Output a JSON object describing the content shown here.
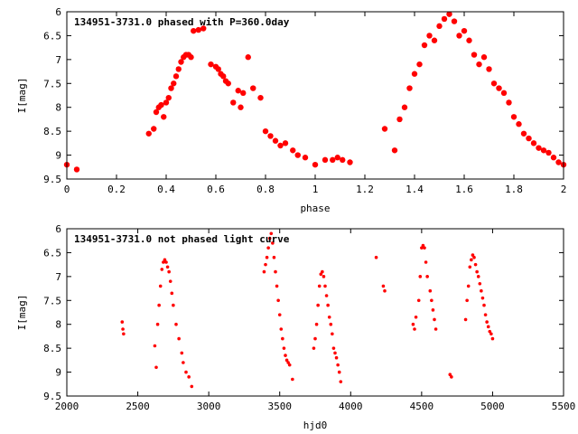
{
  "chart_data": [
    {
      "type": "scatter",
      "title": "134951-3731.0 phased with P=360.0day",
      "xlabel": "phase",
      "ylabel": "I[mag]",
      "xlim": [
        0,
        2
      ],
      "ylim": [
        6,
        9.5
      ],
      "y_inverted": true,
      "grid": false,
      "x_ticks": [
        "0",
        "0.2",
        "0.4",
        "0.6",
        "0.8",
        "1",
        "1.2",
        "1.4",
        "1.6",
        "1.8",
        "2"
      ],
      "y_ticks": [
        "6",
        "6.5",
        "7",
        "7.5",
        "8",
        "8.5",
        "9",
        "9.5"
      ],
      "marker_color": "#ff0000",
      "marker": "filled-circle",
      "series": [
        {
          "x": [
            0.0,
            0.04,
            0.33,
            0.35,
            0.36,
            0.37,
            0.38,
            0.39,
            0.4,
            0.41,
            0.42,
            0.43,
            0.44,
            0.45,
            0.46,
            0.47,
            0.48,
            0.49,
            0.5,
            0.51,
            0.53,
            0.55,
            0.58,
            0.6,
            0.61,
            0.62,
            0.63,
            0.64,
            0.65,
            0.67,
            0.69,
            0.7,
            0.71,
            0.73,
            0.75,
            0.78,
            0.8,
            0.82,
            0.84,
            0.86,
            0.88,
            0.91,
            0.93,
            0.96,
            1.0,
            1.04,
            1.07,
            1.09,
            1.11,
            1.14,
            1.28,
            1.32,
            1.34,
            1.36,
            1.38,
            1.4,
            1.42,
            1.44,
            1.46,
            1.48,
            1.5,
            1.52,
            1.54,
            1.56,
            1.58,
            1.6,
            1.62,
            1.64,
            1.66,
            1.68,
            1.7,
            1.72,
            1.74,
            1.76,
            1.78,
            1.8,
            1.82,
            1.84,
            1.86,
            1.88,
            1.9,
            1.92,
            1.94,
            1.96,
            1.98,
            2.0
          ],
          "y": [
            9.2,
            9.3,
            8.55,
            8.45,
            8.1,
            8.0,
            7.95,
            8.2,
            7.9,
            7.8,
            7.6,
            7.5,
            7.35,
            7.2,
            7.05,
            6.95,
            6.9,
            6.9,
            6.95,
            6.4,
            6.38,
            6.35,
            7.1,
            7.15,
            7.2,
            7.3,
            7.35,
            7.45,
            7.5,
            7.9,
            7.65,
            8.0,
            7.7,
            6.95,
            7.6,
            7.8,
            8.5,
            8.6,
            8.7,
            8.8,
            8.75,
            8.9,
            9.0,
            9.05,
            9.2,
            9.1,
            9.1,
            9.05,
            9.1,
            9.15,
            8.45,
            8.9,
            8.25,
            8.0,
            7.6,
            7.3,
            7.1,
            6.7,
            6.5,
            6.6,
            6.3,
            6.15,
            6.05,
            6.2,
            6.5,
            6.4,
            6.6,
            6.9,
            7.1,
            6.95,
            7.2,
            7.5,
            7.6,
            7.7,
            7.9,
            8.2,
            8.35,
            8.55,
            8.65,
            8.75,
            8.85,
            8.9,
            8.95,
            9.05,
            9.15,
            9.2
          ]
        }
      ]
    },
    {
      "type": "scatter",
      "title": "134951-3731.0 not phased light curve",
      "xlabel": "hjd0",
      "ylabel": "I[mag]",
      "xlim": [
        2000,
        5500
      ],
      "ylim": [
        6,
        9.5
      ],
      "y_inverted": true,
      "grid": false,
      "x_ticks": [
        "2000",
        "2500",
        "3000",
        "3500",
        "4000",
        "4500",
        "5000",
        "5500"
      ],
      "y_ticks": [
        "6",
        "6.5",
        "7",
        "7.5",
        "8",
        "8.5",
        "9",
        "9.5"
      ],
      "marker_color": "#ff0000",
      "marker": "small-dot",
      "series": [
        {
          "x": [
            2390,
            2395,
            2400,
            2620,
            2630,
            2640,
            2650,
            2660,
            2670,
            2680,
            2690,
            2700,
            2710,
            2720,
            2730,
            2740,
            2750,
            2770,
            2790,
            2810,
            2820,
            2840,
            2860,
            2880,
            3390,
            3400,
            3410,
            3420,
            3430,
            3440,
            3450,
            3460,
            3470,
            3480,
            3490,
            3500,
            3510,
            3520,
            3530,
            3540,
            3550,
            3560,
            3570,
            3590,
            3740,
            3750,
            3760,
            3770,
            3780,
            3790,
            3800,
            3810,
            3820,
            3830,
            3840,
            3850,
            3860,
            3870,
            3880,
            3890,
            3900,
            3910,
            3920,
            3930,
            4180,
            4230,
            4240,
            4440,
            4450,
            4460,
            4480,
            4490,
            4500,
            4510,
            4520,
            4530,
            4540,
            4560,
            4570,
            4580,
            4590,
            4600,
            4700,
            4710,
            4810,
            4820,
            4830,
            4840,
            4850,
            4860,
            4870,
            4880,
            4890,
            4900,
            4910,
            4920,
            4930,
            4940,
            4950,
            4960,
            4970,
            4980,
            4990,
            5000
          ],
          "y": [
            7.95,
            8.1,
            8.2,
            8.45,
            8.9,
            8.0,
            7.6,
            7.2,
            6.85,
            6.7,
            6.65,
            6.7,
            6.8,
            6.9,
            7.1,
            7.35,
            7.6,
            8.0,
            8.3,
            8.6,
            8.8,
            9.0,
            9.1,
            9.3,
            6.9,
            6.75,
            6.6,
            6.4,
            6.2,
            6.1,
            6.3,
            6.6,
            6.9,
            7.2,
            7.5,
            7.8,
            8.1,
            8.3,
            8.5,
            8.65,
            8.75,
            8.8,
            8.85,
            9.15,
            8.5,
            8.3,
            8.0,
            7.6,
            7.2,
            6.95,
            6.9,
            7.0,
            7.2,
            7.4,
            7.6,
            7.85,
            8.0,
            8.2,
            8.5,
            8.6,
            8.7,
            8.85,
            9.0,
            9.2,
            6.6,
            7.2,
            7.3,
            8.0,
            8.1,
            7.85,
            7.5,
            7.0,
            6.4,
            6.35,
            6.4,
            6.7,
            7.0,
            7.3,
            7.5,
            7.7,
            7.9,
            8.1,
            9.05,
            9.1,
            7.9,
            7.5,
            7.2,
            6.8,
            6.65,
            6.55,
            6.6,
            6.75,
            6.9,
            7.0,
            7.15,
            7.3,
            7.45,
            7.6,
            7.8,
            7.95,
            8.05,
            8.15,
            8.2,
            8.3
          ]
        }
      ]
    }
  ]
}
